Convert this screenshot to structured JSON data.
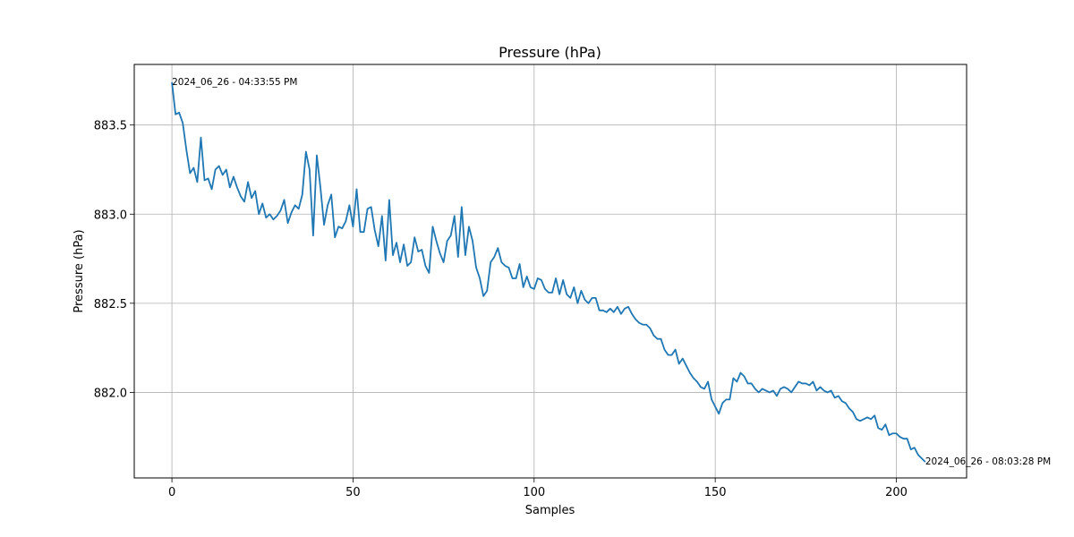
{
  "chart_data": {
    "type": "line",
    "title": "Pressure (hPa)",
    "xlabel": "Samples",
    "ylabel": "Pressure (hPa)",
    "xlim": [
      -10.4,
      219.4
    ],
    "ylim": [
      881.52,
      883.84
    ],
    "xticks": [
      0,
      50,
      100,
      150,
      200
    ],
    "yticks": [
      882.0,
      882.5,
      883.0,
      883.5
    ],
    "grid": true,
    "line_color": "#1f77b4",
    "series": [
      {
        "values": [
          883.74,
          883.56,
          883.57,
          883.51,
          883.36,
          883.23,
          883.26,
          883.18,
          883.43,
          883.19,
          883.2,
          883.14,
          883.25,
          883.27,
          883.22,
          883.25,
          883.15,
          883.21,
          883.15,
          883.1,
          883.07,
          883.18,
          883.09,
          883.13,
          883.0,
          883.06,
          882.98,
          883.0,
          882.97,
          882.99,
          883.02,
          883.08,
          882.95,
          883.01,
          883.05,
          883.03,
          883.11,
          883.35,
          883.25,
          882.88,
          883.33,
          883.15,
          882.94,
          883.05,
          883.11,
          882.87,
          882.93,
          882.92,
          882.96,
          883.05,
          882.93,
          883.14,
          882.9,
          882.9,
          883.03,
          883.04,
          882.91,
          882.82,
          882.99,
          882.74,
          883.08,
          882.77,
          882.84,
          882.73,
          882.83,
          882.71,
          882.73,
          882.87,
          882.79,
          882.8,
          882.71,
          882.67,
          882.93,
          882.85,
          882.78,
          882.73,
          882.85,
          882.88,
          882.99,
          882.76,
          883.04,
          882.77,
          882.93,
          882.85,
          882.7,
          882.64,
          882.54,
          882.57,
          882.73,
          882.76,
          882.81,
          882.73,
          882.71,
          882.7,
          882.64,
          882.64,
          882.72,
          882.59,
          882.65,
          882.59,
          882.58,
          882.64,
          882.63,
          882.58,
          882.56,
          882.56,
          882.64,
          882.55,
          882.63,
          882.55,
          882.53,
          882.59,
          882.5,
          882.57,
          882.52,
          882.5,
          882.53,
          882.53,
          882.46,
          882.46,
          882.45,
          882.47,
          882.45,
          882.48,
          882.44,
          882.47,
          882.48,
          882.44,
          882.41,
          882.39,
          882.38,
          882.38,
          882.36,
          882.32,
          882.3,
          882.3,
          882.24,
          882.21,
          882.21,
          882.24,
          882.16,
          882.19,
          882.15,
          882.11,
          882.08,
          882.06,
          882.03,
          882.02,
          882.06,
          881.96,
          881.92,
          881.88,
          881.94,
          881.96,
          881.96,
          882.08,
          882.06,
          882.11,
          882.09,
          882.05,
          882.05,
          882.02,
          882.0,
          882.02,
          882.01,
          882.0,
          882.01,
          881.98,
          882.02,
          882.03,
          882.02,
          882.0,
          882.03,
          882.06,
          882.05,
          882.05,
          882.04,
          882.06,
          882.01,
          882.03,
          882.01,
          882.0,
          882.01,
          881.97,
          881.98,
          881.95,
          881.94,
          881.91,
          881.89,
          881.85,
          881.84,
          881.85,
          881.86,
          881.85,
          881.87,
          881.8,
          881.79,
          881.82,
          881.76,
          881.77,
          881.77,
          881.75,
          881.74,
          881.74,
          881.68,
          881.69,
          881.65,
          881.63,
          881.61
        ]
      }
    ],
    "annotations": [
      {
        "text": "2024_06_26 - 04:33:55 PM",
        "x": 0,
        "y": 883.74,
        "anchor": "start"
      },
      {
        "text": "2024_06_26 - 08:03:28 PM",
        "x": 208,
        "y": 881.61,
        "anchor": "start"
      }
    ]
  }
}
